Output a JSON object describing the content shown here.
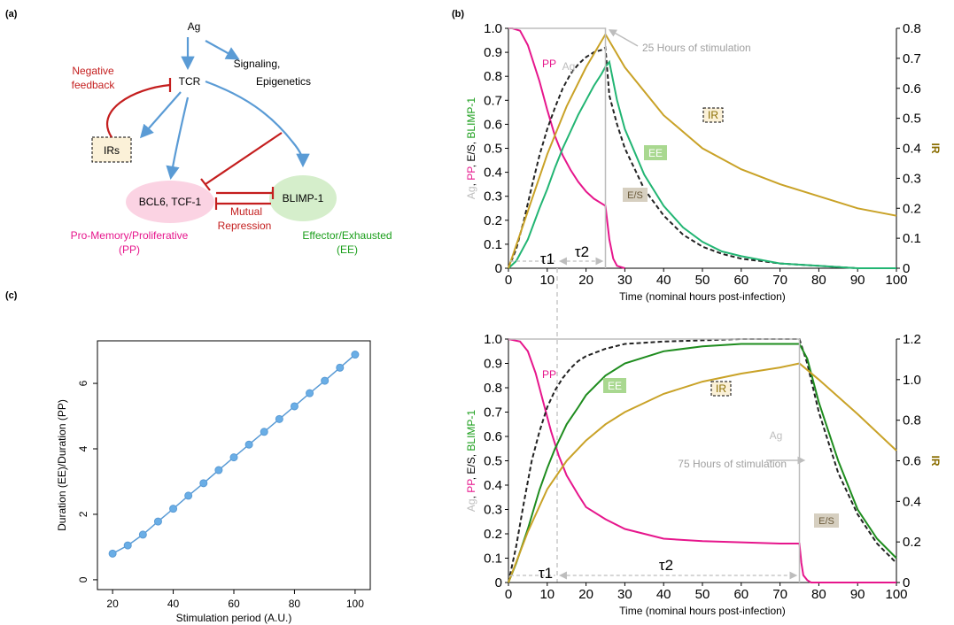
{
  "panels": {
    "a": "(a)",
    "b": "(b)",
    "c": "(c)"
  },
  "colors": {
    "pp": "#e6168c",
    "ee_light": "#22b573",
    "ee_dark": "#1e8c1e",
    "ir": "#c9a227",
    "ag": "#bdbdbd",
    "es": "#222222",
    "blue": "#5a9bd5",
    "red": "#c41e1e",
    "ee_text": "#1a9e1a",
    "pp_text": "#e6168c",
    "ir_text": "#8a6d00"
  },
  "diagram": {
    "ag": "Ag",
    "tcr": "TCR",
    "signaling_line1": "Signaling,",
    "signaling_line2": "Epigenetics",
    "negative_line1": "Negative",
    "negative_line2": "feedback",
    "irs": "IRs",
    "bcl6": "BCL6, TCF-1",
    "blimp": "BLIMP-1",
    "mutual_line1": "Mutual",
    "mutual_line2": "Repression",
    "pp_line1": "Pro-Memory/Proliferative",
    "pp_line2": "(PP)",
    "ee_line1": "Effector/Exhausted",
    "ee_line2": "(EE)"
  },
  "chart_data": [
    {
      "id": "b-top",
      "type": "line",
      "xlabel": "Time (nominal hours post-infection)",
      "ylabel_parts": [
        "Ag",
        ", ",
        "PP",
        ", ",
        "E/S",
        ", ",
        "BLIMP-1"
      ],
      "y2label": "IR",
      "xlim": [
        0,
        100
      ],
      "ylim": [
        0,
        1
      ],
      "y2lim": [
        0,
        0.8
      ],
      "xticks": [
        "0",
        "10",
        "20",
        "30",
        "40",
        "50",
        "60",
        "70",
        "80",
        "90",
        "100"
      ],
      "yticks": [
        "0",
        "0.1",
        "0.2",
        "0.3",
        "0.4",
        "0.5",
        "0.6",
        "0.7",
        "0.8",
        "0.9",
        "1.0"
      ],
      "y2ticks": [
        "0",
        "0.1",
        "0.2",
        "0.3",
        "0.4",
        "0.5",
        "0.6",
        "0.7",
        "0.8"
      ],
      "stimulation_end": 25,
      "annotation": "25 Hours of stimulation",
      "labels": {
        "ag": "Ag",
        "pp": "PP",
        "ir": "IR",
        "ee": "EE",
        "es": "E/S",
        "tau1": "τ1",
        "tau2": "τ2"
      },
      "series": [
        {
          "key": "pp",
          "name": "PP",
          "x": [
            0,
            1,
            3,
            5,
            8,
            10,
            12,
            14,
            16,
            18,
            20,
            22,
            24,
            25,
            26,
            27,
            28,
            30
          ],
          "y": [
            1.0,
            1.0,
            0.99,
            0.93,
            0.78,
            0.66,
            0.55,
            0.47,
            0.41,
            0.36,
            0.32,
            0.29,
            0.27,
            0.26,
            0.12,
            0.04,
            0.01,
            0.0
          ]
        },
        {
          "key": "es",
          "name": "E/S",
          "x": [
            0,
            2,
            4,
            6,
            8,
            10,
            12,
            14,
            16,
            18,
            20,
            22,
            24,
            25,
            26,
            28,
            30,
            35,
            40,
            45,
            50,
            55,
            60,
            70,
            80,
            90,
            95
          ],
          "y": [
            0.0,
            0.08,
            0.2,
            0.34,
            0.47,
            0.58,
            0.67,
            0.75,
            0.81,
            0.85,
            0.88,
            0.9,
            0.91,
            0.92,
            0.72,
            0.6,
            0.5,
            0.33,
            0.22,
            0.14,
            0.09,
            0.06,
            0.04,
            0.02,
            0.01,
            0.0,
            0.0
          ]
        },
        {
          "key": "ee",
          "name": "BLIMP-1",
          "x": [
            0,
            2,
            5,
            8,
            10,
            12,
            14,
            16,
            18,
            20,
            22,
            24,
            25,
            26,
            28,
            30,
            35,
            40,
            45,
            50,
            55,
            60,
            70,
            80,
            90,
            95,
            100
          ],
          "y": [
            0.0,
            0.03,
            0.12,
            0.25,
            0.33,
            0.42,
            0.5,
            0.57,
            0.64,
            0.7,
            0.76,
            0.81,
            0.84,
            0.86,
            0.7,
            0.58,
            0.39,
            0.26,
            0.17,
            0.11,
            0.07,
            0.05,
            0.02,
            0.01,
            0.0,
            0.0,
            0.0
          ]
        },
        {
          "key": "ir",
          "name": "IR",
          "x": [
            0,
            5,
            10,
            15,
            20,
            25,
            30,
            40,
            50,
            60,
            70,
            80,
            90,
            100
          ],
          "y": [
            0.0,
            0.19,
            0.38,
            0.54,
            0.67,
            0.78,
            0.67,
            0.51,
            0.4,
            0.33,
            0.28,
            0.24,
            0.2,
            0.175
          ],
          "axis": "y2"
        },
        {
          "key": "ag",
          "name": "Ag",
          "x": [
            0,
            25,
            25
          ],
          "y": [
            1.0,
            1.0,
            0.0
          ]
        }
      ]
    },
    {
      "id": "b-bottom",
      "type": "line",
      "xlabel": "Time (nominal hours post-infection)",
      "ylabel_parts": [
        "Ag",
        ", ",
        "PP",
        ", ",
        "E/S",
        ", ",
        "BLIMP-1"
      ],
      "y2label": "IR",
      "xlim": [
        0,
        100
      ],
      "ylim": [
        0,
        1
      ],
      "y2lim": [
        0,
        1.2
      ],
      "xticks": [
        "0",
        "10",
        "20",
        "30",
        "40",
        "50",
        "60",
        "70",
        "80",
        "90",
        "100"
      ],
      "yticks": [
        "0",
        "0.1",
        "0.2",
        "0.3",
        "0.4",
        "0.5",
        "0.6",
        "0.7",
        "0.8",
        "0.9",
        "1.0"
      ],
      "y2ticks": [
        "0",
        "0.2",
        "0.4",
        "0.6",
        "0.8",
        "1.0",
        "1.2"
      ],
      "stimulation_end": 75,
      "annotation": "75 Hours of stimulation",
      "labels": {
        "ag": "Ag",
        "pp": "PP",
        "ir": "IR",
        "ee": "EE",
        "es": "E/S",
        "tau1": "τ1",
        "tau2": "τ2"
      },
      "series": [
        {
          "key": "pp",
          "name": "PP",
          "x": [
            0,
            3,
            5,
            7,
            9,
            11,
            13,
            15,
            18,
            20,
            25,
            30,
            35,
            40,
            50,
            60,
            70,
            75,
            75.5,
            76,
            77,
            78,
            80,
            100
          ],
          "y": [
            1.0,
            0.99,
            0.95,
            0.86,
            0.74,
            0.62,
            0.52,
            0.44,
            0.36,
            0.31,
            0.26,
            0.22,
            0.2,
            0.18,
            0.17,
            0.165,
            0.16,
            0.16,
            0.08,
            0.03,
            0.01,
            0.0,
            0.0,
            0.0
          ]
        },
        {
          "key": "es",
          "name": "E/S",
          "x": [
            0,
            2,
            4,
            6,
            8,
            10,
            12,
            14,
            16,
            18,
            20,
            25,
            30,
            40,
            50,
            60,
            70,
            75,
            77,
            80,
            85,
            90,
            95,
            100
          ],
          "y": [
            0.0,
            0.15,
            0.33,
            0.5,
            0.62,
            0.72,
            0.79,
            0.84,
            0.88,
            0.91,
            0.93,
            0.96,
            0.98,
            0.99,
            0.995,
            1.0,
            1.0,
            1.0,
            0.9,
            0.7,
            0.45,
            0.28,
            0.16,
            0.08
          ]
        },
        {
          "key": "ee_dark",
          "name": "BLIMP-1",
          "x": [
            0,
            2,
            5,
            8,
            10,
            12,
            15,
            18,
            20,
            25,
            30,
            40,
            50,
            60,
            70,
            75,
            77,
            80,
            85,
            90,
            95,
            100
          ],
          "y": [
            0.0,
            0.08,
            0.22,
            0.38,
            0.47,
            0.55,
            0.65,
            0.72,
            0.77,
            0.85,
            0.9,
            0.95,
            0.97,
            0.98,
            0.98,
            0.98,
            0.92,
            0.74,
            0.5,
            0.3,
            0.18,
            0.1
          ]
        },
        {
          "key": "ir",
          "name": "IR",
          "x": [
            0,
            5,
            10,
            15,
            20,
            25,
            30,
            40,
            50,
            60,
            70,
            75,
            80,
            90,
            100
          ],
          "y": [
            0.0,
            0.25,
            0.46,
            0.6,
            0.7,
            0.78,
            0.84,
            0.93,
            0.99,
            1.03,
            1.06,
            1.08,
            1.0,
            0.83,
            0.65
          ],
          "axis": "y2"
        },
        {
          "key": "ag",
          "name": "Ag",
          "x": [
            0,
            75,
            75
          ],
          "y": [
            1.0,
            1.0,
            0.0
          ]
        }
      ]
    },
    {
      "id": "c",
      "type": "line",
      "xlabel": "Stimulation period (A.U.)",
      "ylabel": "Duration (EE)/Duration (PP)",
      "xlim": [
        15,
        105
      ],
      "ylim": [
        -0.3,
        7.3
      ],
      "xticks": [
        "20",
        "40",
        "60",
        "80",
        "100"
      ],
      "yticks": [
        "0",
        "2",
        "4",
        "6"
      ],
      "x": [
        20,
        25,
        30,
        35,
        40,
        45,
        50,
        55,
        60,
        65,
        70,
        75,
        80,
        85,
        90,
        95,
        100
      ],
      "y": [
        0.8,
        1.05,
        1.38,
        1.78,
        2.17,
        2.57,
        2.95,
        3.35,
        3.74,
        4.13,
        4.52,
        4.91,
        5.3,
        5.7,
        6.08,
        6.48,
        6.88
      ]
    }
  ]
}
